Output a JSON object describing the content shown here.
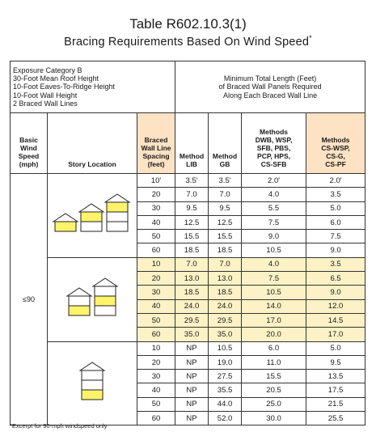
{
  "title": "Table R602.10.3(1)",
  "subtitle": "Bracing Requirements Based On Wind Speed",
  "subtitle_mark": "*",
  "conditions": [
    "Exposure Category B",
    "30-Foot Mean Roof Height",
    "10-Foot Eaves-To-Ridge Height",
    "10-Foot Wall Height",
    "2 Braced Wall Lines"
  ],
  "min_length_header": [
    "Minimum Total Length (Feet)",
    "of Braced Wall Panels Required",
    "Along Each Braced Wall Line"
  ],
  "headers": {
    "speed": [
      "Basic",
      "Wind",
      "Speed",
      "(mph)"
    ],
    "story": [
      "Story Location"
    ],
    "spacing": [
      "Braced",
      "Wall Line",
      "Spacing",
      "(feet)"
    ],
    "lib": [
      "Method",
      "LIB"
    ],
    "gb": [
      "Method",
      "GB"
    ],
    "dwb": [
      "Methods",
      "DWB, WSP,",
      "SFB, PBS,",
      "PCP, HPS,",
      "CS-SFB"
    ],
    "cswsp": [
      "Methods",
      "CS-WSP,",
      "CS-G,",
      "CS-PF"
    ]
  },
  "speed_value": "≤90",
  "groups": [
    {
      "story": "top",
      "rows": [
        [
          "10'",
          "3.5'",
          "3.5'",
          "2.0'",
          "2.0'"
        ],
        [
          "20",
          "7.0",
          "7.0",
          "4.0",
          "3.5"
        ],
        [
          "30",
          "9.5",
          "9.5",
          "5.5",
          "5.0"
        ],
        [
          "40",
          "12.5",
          "12.5",
          "7.5",
          "6.0"
        ],
        [
          "50",
          "15.5",
          "15.5",
          "9.0",
          "7.5"
        ],
        [
          "60",
          "18.5",
          "18.5",
          "10.5",
          "9.0"
        ]
      ]
    },
    {
      "story": "middle",
      "rows": [
        [
          "10",
          "7.0",
          "7.0",
          "4.0",
          "3.5"
        ],
        [
          "20",
          "13.0",
          "13.0",
          "7.5",
          "6.5"
        ],
        [
          "30",
          "18.5",
          "18.5",
          "10.5",
          "9.0"
        ],
        [
          "40",
          "24.0",
          "24.0",
          "14.0",
          "12.0"
        ],
        [
          "50",
          "29.5",
          "29.5",
          "17.0",
          "14.5"
        ],
        [
          "60",
          "35.0",
          "35.0",
          "20.0",
          "17.0"
        ]
      ]
    },
    {
      "story": "bottom",
      "rows": [
        [
          "10",
          "NP",
          "10.5",
          "6.0",
          "5.0"
        ],
        [
          "20",
          "NP",
          "19.0",
          "11.0",
          "9.5"
        ],
        [
          "30",
          "NP",
          "27.5",
          "15.5",
          "13.5"
        ],
        [
          "40",
          "NP",
          "35.5",
          "20.5",
          "17.5"
        ],
        [
          "50",
          "NP",
          "44.0",
          "25.0",
          "21.5"
        ],
        [
          "60",
          "NP",
          "52.0",
          "30.0",
          "25.5"
        ]
      ]
    }
  ],
  "footnote": "*Excerpt for 90-mph windspeed only",
  "colors": {
    "highlight": "#fde2c4",
    "row_highlight": "#fdf2c5",
    "story_fill": "#fff36a",
    "border": "#333333"
  }
}
